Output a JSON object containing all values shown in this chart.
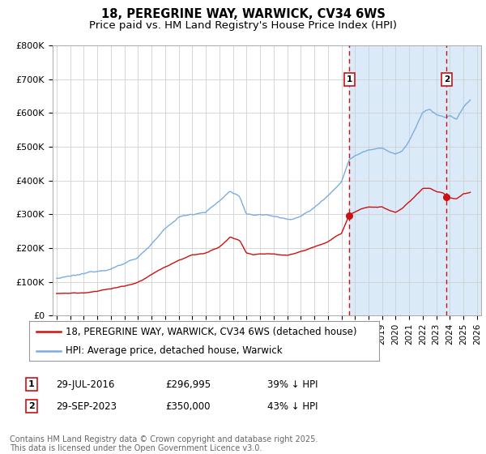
{
  "title": "18, PEREGRINE WAY, WARWICK, CV34 6WS",
  "subtitle": "Price paid vs. HM Land Registry's House Price Index (HPI)",
  "ylim": [
    0,
    800000
  ],
  "yticks": [
    0,
    100000,
    200000,
    300000,
    400000,
    500000,
    600000,
    700000,
    800000
  ],
  "ytick_labels": [
    "£0",
    "£100K",
    "£200K",
    "£300K",
    "£400K",
    "£500K",
    "£600K",
    "£700K",
    "£800K"
  ],
  "xlim_start": 1994.7,
  "xlim_end": 2026.3,
  "hpi_color": "#7aade0",
  "price_color": "#cc1111",
  "vline_color": "#cc1111",
  "shade_color": "#daeaf8",
  "sale1_x": 2016.58,
  "sale1_y": 296995,
  "sale1_label": "29-JUL-2016",
  "sale1_price": "£296,995",
  "sale1_note": "39% ↓ HPI",
  "sale2_x": 2023.75,
  "sale2_y": 350000,
  "sale2_label": "29-SEP-2023",
  "sale2_price": "£350,000",
  "sale2_note": "43% ↓ HPI",
  "legend_line1": "18, PEREGRINE WAY, WARWICK, CV34 6WS (detached house)",
  "legend_line2": "HPI: Average price, detached house, Warwick",
  "footer": "Contains HM Land Registry data © Crown copyright and database right 2025.\nThis data is licensed under the Open Government Licence v3.0.",
  "bg_color": "#ffffff",
  "grid_color": "#d0d0d0",
  "title_fontsize": 10.5,
  "subtitle_fontsize": 9.5,
  "tick_fontsize": 8,
  "legend_fontsize": 8.5,
  "footer_fontsize": 7
}
